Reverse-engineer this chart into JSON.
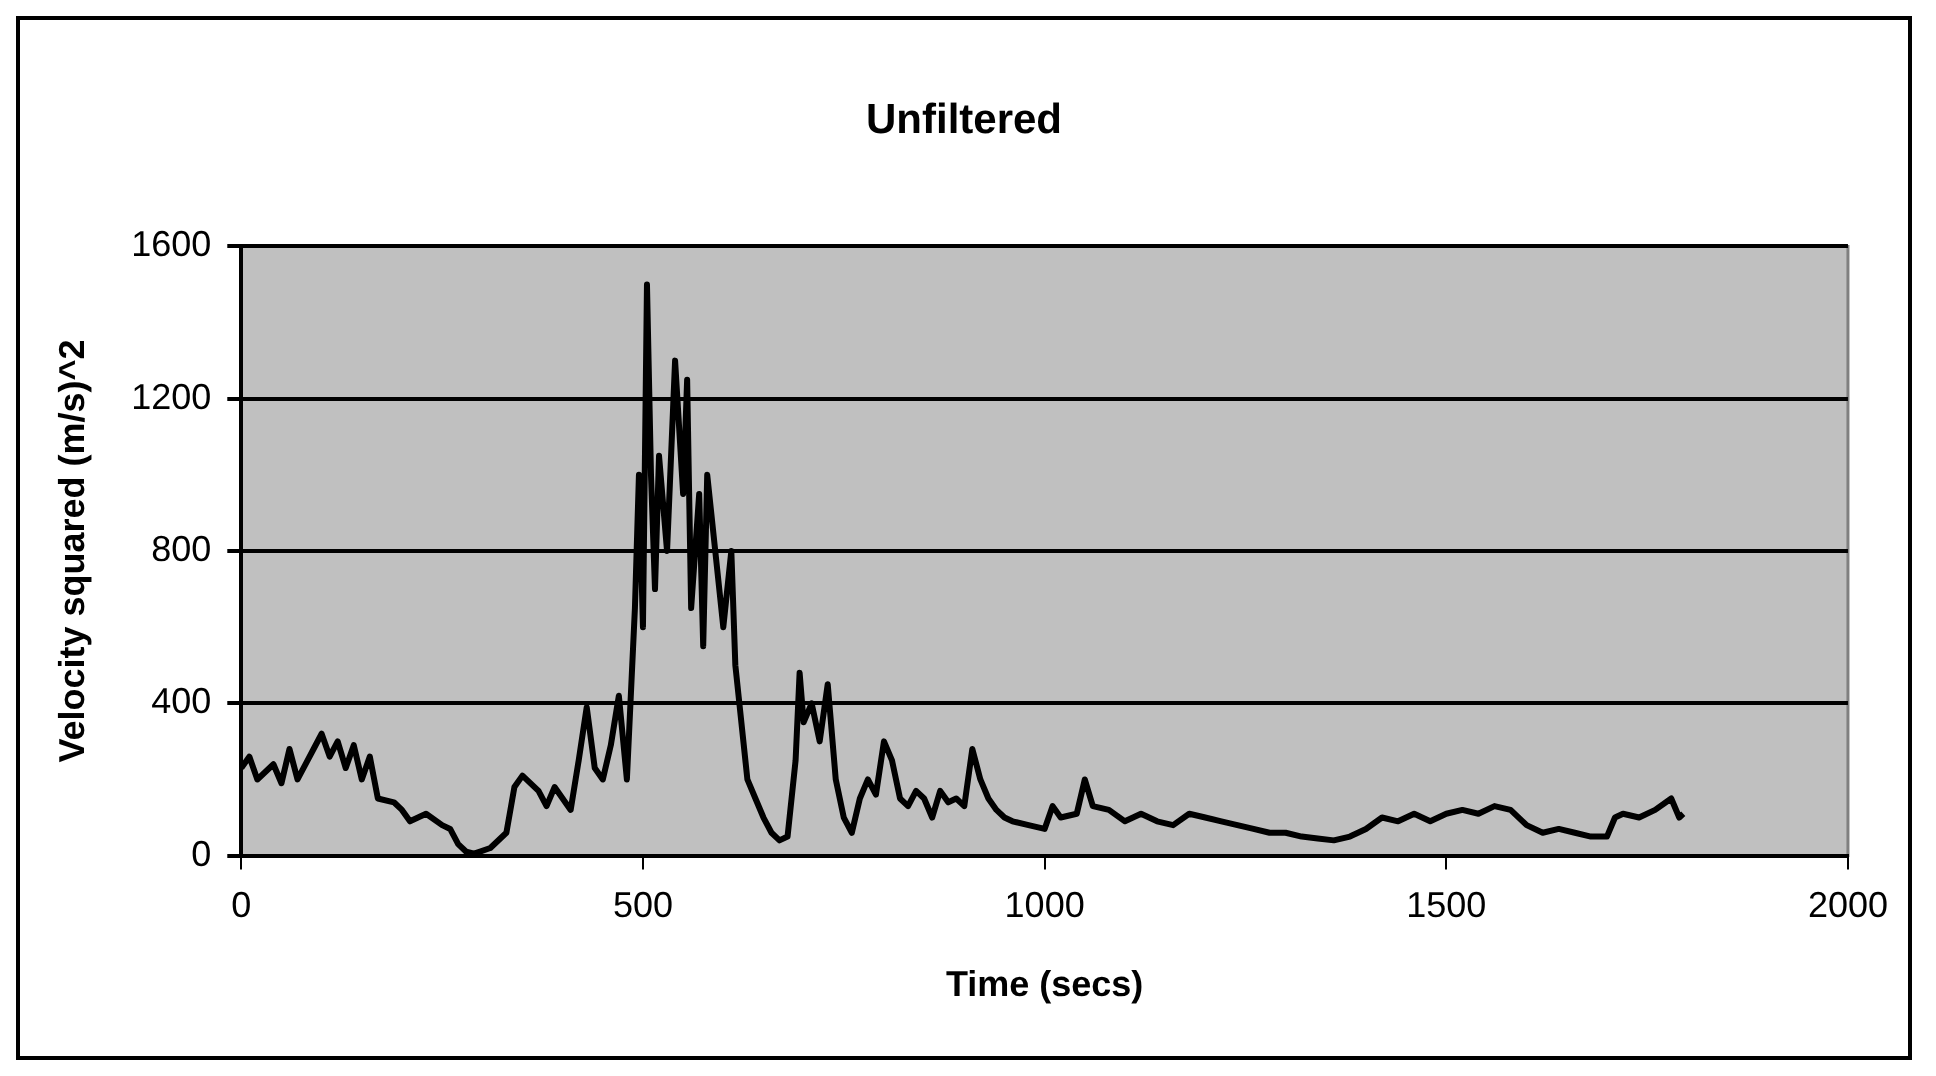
{
  "chart_data": {
    "type": "line",
    "title": "Unfiltered",
    "xlabel": "Time (secs)",
    "ylabel": "Velocity squared (m/s)^2",
    "xlim": [
      0,
      2000
    ],
    "xticks": [
      0,
      500,
      1000,
      1500,
      2000
    ],
    "ylim": [
      0,
      1600
    ],
    "yticks": [
      0,
      400,
      800,
      1200,
      1600
    ],
    "grid": "y",
    "legend": false,
    "marker": "none",
    "series": [
      {
        "color": "#000000",
        "x": [
          0,
          10,
          20,
          40,
          50,
          60,
          70,
          90,
          100,
          110,
          120,
          130,
          140,
          150,
          160,
          170,
          190,
          200,
          210,
          230,
          250,
          260,
          270,
          280,
          290,
          310,
          330,
          340,
          350,
          370,
          380,
          390,
          400,
          410,
          420,
          430,
          440,
          450,
          460,
          470,
          480,
          490,
          495,
          500,
          505,
          510,
          515,
          520,
          530,
          540,
          550,
          555,
          560,
          570,
          575,
          580,
          590,
          600,
          610,
          615,
          620,
          630,
          640,
          650,
          660,
          670,
          680,
          690,
          695,
          700,
          710,
          720,
          730,
          740,
          750,
          760,
          770,
          780,
          790,
          800,
          810,
          820,
          830,
          840,
          850,
          860,
          870,
          880,
          890,
          900,
          910,
          920,
          930,
          940,
          950,
          960,
          980,
          1000,
          1010,
          1020,
          1040,
          1050,
          1060,
          1080,
          1100,
          1120,
          1140,
          1160,
          1180,
          1200,
          1220,
          1240,
          1260,
          1280,
          1300,
          1320,
          1340,
          1360,
          1380,
          1400,
          1420,
          1440,
          1460,
          1480,
          1500,
          1520,
          1540,
          1560,
          1580,
          1600,
          1620,
          1640,
          1660,
          1680,
          1700,
          1710,
          1720,
          1740,
          1760,
          1780,
          1790,
          1795
        ],
        "values": [
          230,
          260,
          200,
          240,
          190,
          280,
          200,
          280,
          320,
          260,
          300,
          230,
          290,
          200,
          260,
          150,
          140,
          120,
          90,
          110,
          80,
          70,
          30,
          10,
          5,
          20,
          60,
          180,
          210,
          170,
          130,
          180,
          150,
          120,
          250,
          390,
          230,
          200,
          290,
          420,
          200,
          650,
          1000,
          600,
          1500,
          1000,
          700,
          1050,
          800,
          1300,
          950,
          1250,
          650,
          950,
          550,
          1000,
          800,
          600,
          800,
          500,
          400,
          200,
          150,
          100,
          60,
          40,
          50,
          250,
          480,
          350,
          400,
          300,
          450,
          200,
          100,
          60,
          150,
          200,
          160,
          300,
          250,
          150,
          130,
          170,
          150,
          100,
          170,
          140,
          150,
          130,
          280,
          200,
          150,
          120,
          100,
          90,
          80,
          70,
          130,
          100,
          110,
          200,
          130,
          120,
          90,
          110,
          90,
          80,
          110,
          100,
          90,
          80,
          70,
          60,
          60,
          50,
          45,
          40,
          50,
          70,
          100,
          90,
          110,
          90,
          110,
          120,
          110,
          130,
          120,
          80,
          60,
          70,
          60,
          50,
          50,
          100,
          110,
          100,
          120,
          150,
          100,
          110
        ]
      }
    ]
  }
}
